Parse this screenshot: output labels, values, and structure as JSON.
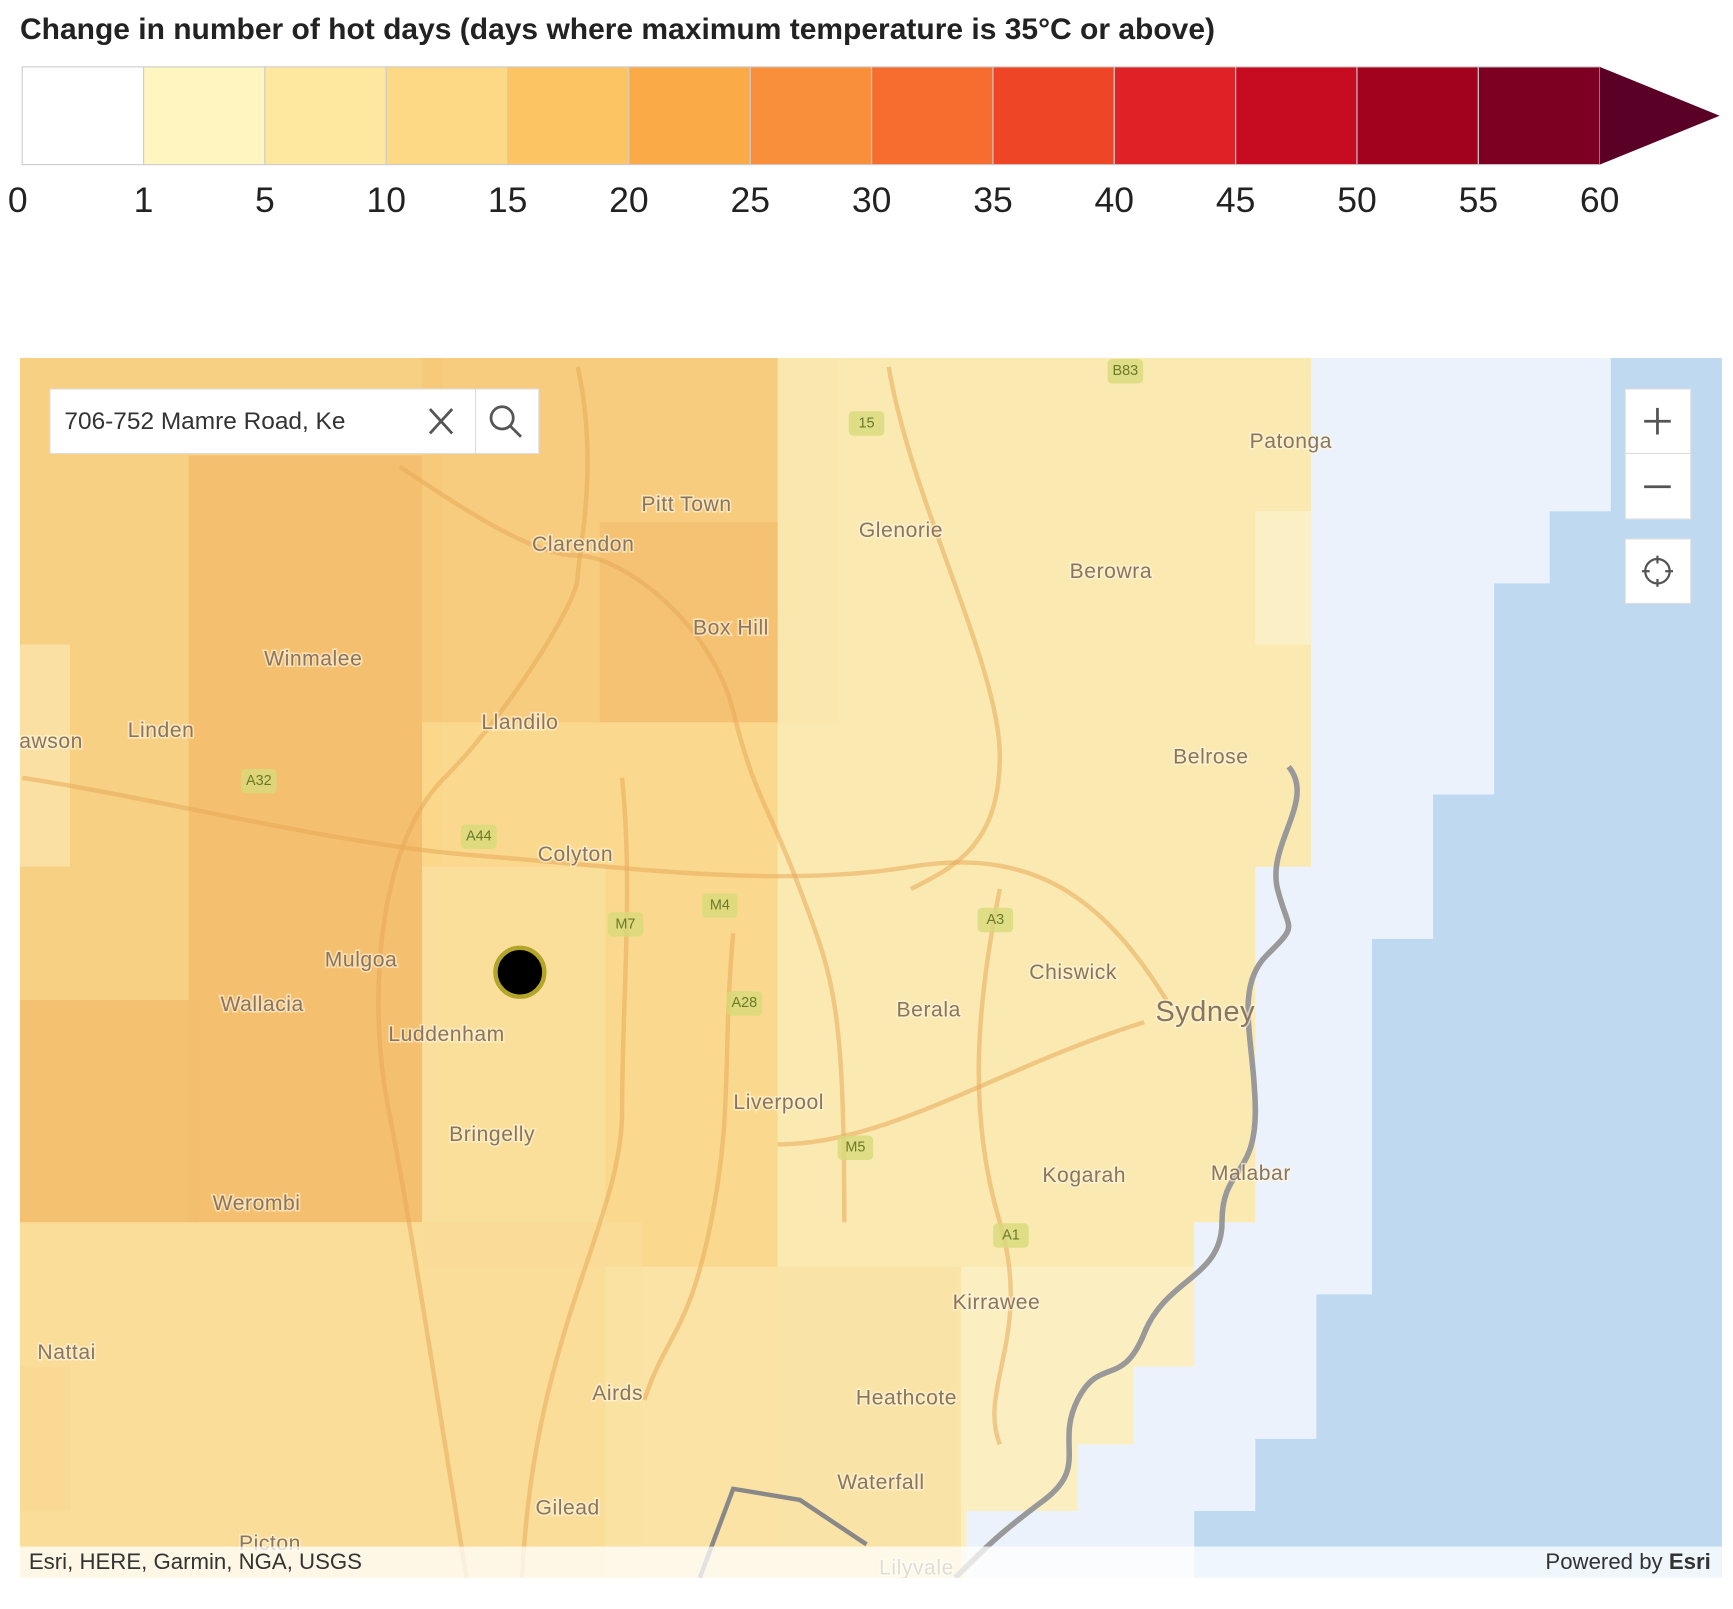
{
  "legend": {
    "title": "Change in number of hot days (days where maximum temperature is 35°C or above)",
    "ticks": [
      0,
      1,
      5,
      10,
      15,
      20,
      25,
      30,
      35,
      40,
      45,
      50,
      55,
      60
    ],
    "colors": [
      "#ffffff",
      "#fff5c0",
      "#fee8a0",
      "#fdd985",
      "#fcc463",
      "#fbaa48",
      "#f98e3b",
      "#f66d2f",
      "#ef4527",
      "#de2226",
      "#c70c22",
      "#a3021f",
      "#7d0023",
      "#5a0026"
    ]
  },
  "search": {
    "text": "706-752 Mamre Road, Ke"
  },
  "places": [
    {
      "name": "Pitt Town"
    },
    {
      "name": "Clarendon"
    },
    {
      "name": "Glenorie"
    },
    {
      "name": "Patonga"
    },
    {
      "name": "Berowra"
    },
    {
      "name": "Box Hill"
    },
    {
      "name": "Winmalee"
    },
    {
      "name": "Llandilo"
    },
    {
      "name": "Linden"
    },
    {
      "name": "awson"
    },
    {
      "name": "Belrose"
    },
    {
      "name": "Colyton"
    },
    {
      "name": "Mulgoa"
    },
    {
      "name": "Chiswick"
    },
    {
      "name": "Wallacia"
    },
    {
      "name": "Sydney"
    },
    {
      "name": "Berala"
    },
    {
      "name": "Luddenham"
    },
    {
      "name": "Liverpool"
    },
    {
      "name": "Bringelly"
    },
    {
      "name": "Kogarah"
    },
    {
      "name": "Malabar"
    },
    {
      "name": "Werombi"
    },
    {
      "name": "Kirrawee"
    },
    {
      "name": "Nattai"
    },
    {
      "name": "Airds"
    },
    {
      "name": "Heathcote"
    },
    {
      "name": "Waterfall"
    },
    {
      "name": "Gilead"
    },
    {
      "name": "Picton"
    },
    {
      "name": "Lilyvale"
    }
  ],
  "roads": [
    "A32",
    "A44",
    "M7",
    "M4",
    "A3",
    "A28",
    "M5",
    "A1",
    "15",
    "B83"
  ],
  "attribution": {
    "sources": "Esri, HERE, Garmin, NGA, USGS",
    "powered": "Powered by",
    "brand": "Esri"
  }
}
